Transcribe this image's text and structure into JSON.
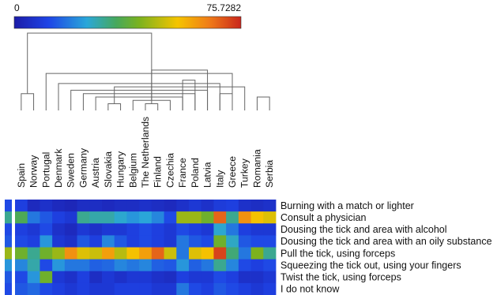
{
  "chart_data": {
    "type": "heatmap",
    "colorbar": {
      "min_label": "0",
      "max_label": "75.7282",
      "min": 0,
      "max": 75.7282,
      "colormap": "jet"
    },
    "x_labels": [
      "Spain",
      "Norway",
      "Portugal",
      "Denmark",
      "Sweden",
      "Germany",
      "Austria",
      "Slovakia",
      "Hungary",
      "Belgium",
      "The Netherlands",
      "Finland",
      "Czechia",
      "France",
      "Poland",
      "Latvia",
      "Italy",
      "Greece",
      "Turkey",
      "Romania",
      "Serbia"
    ],
    "y_labels": [
      "Burning with a match or lighter",
      "Consult a physician",
      "Dousing the tick and area with alcohol",
      "Dousing the tick and area with an oily substance",
      "Pull the tick, using forceps",
      "Squeezing the tick out, using your fingers",
      "Twist the tick, using forceps",
      "I do not know"
    ],
    "values": [
      [
        10,
        4,
        6,
        4,
        3,
        5,
        5,
        4,
        5,
        5,
        6,
        5,
        4,
        6,
        8,
        6,
        9,
        10,
        6,
        5,
        6
      ],
      [
        35,
        18,
        14,
        10,
        8,
        30,
        28,
        28,
        25,
        22,
        24,
        20,
        12,
        45,
        45,
        40,
        68,
        30,
        62,
        55,
        52
      ],
      [
        10,
        8,
        12,
        6,
        4,
        8,
        6,
        8,
        8,
        10,
        12,
        10,
        8,
        12,
        10,
        8,
        25,
        18,
        10,
        8,
        8
      ],
      [
        12,
        10,
        22,
        8,
        6,
        14,
        10,
        20,
        14,
        10,
        12,
        10,
        8,
        18,
        14,
        12,
        40,
        26,
        14,
        12,
        12
      ],
      [
        40,
        30,
        40,
        45,
        62,
        52,
        50,
        60,
        48,
        55,
        60,
        68,
        50,
        18,
        52,
        55,
        72,
        32,
        18,
        42,
        30
      ],
      [
        20,
        28,
        12,
        22,
        18,
        18,
        15,
        16,
        20,
        18,
        20,
        15,
        14,
        22,
        15,
        18,
        30,
        20,
        12,
        10,
        12
      ],
      [
        12,
        22,
        40,
        8,
        6,
        10,
        5,
        8,
        6,
        8,
        8,
        6,
        5,
        10,
        8,
        8,
        12,
        10,
        6,
        6,
        8
      ],
      [
        14,
        16,
        12,
        10,
        8,
        10,
        8,
        8,
        10,
        10,
        10,
        8,
        8,
        18,
        12,
        10,
        14,
        12,
        10,
        8,
        10
      ]
    ],
    "row_colorbar_values": [
      12,
      30,
      12,
      14,
      45,
      22,
      14,
      12
    ],
    "dendrogram": [
      [
        0,
        1,
        5
      ],
      [
        7,
        8,
        2
      ],
      [
        10,
        11,
        2
      ],
      [
        12,
        9,
        3
      ],
      [
        6,
        13,
        4
      ],
      [
        14,
        5,
        5
      ],
      [
        15,
        4,
        6
      ],
      [
        3,
        16,
        8
      ],
      [
        2,
        17,
        11
      ],
      [
        19,
        20,
        4
      ],
      [
        22,
        18,
        7
      ],
      [
        16,
        17,
        5
      ],
      [
        13,
        14,
        9
      ],
      [
        15,
        23,
        12
      ],
      [
        21,
        24,
        23
      ]
    ]
  }
}
